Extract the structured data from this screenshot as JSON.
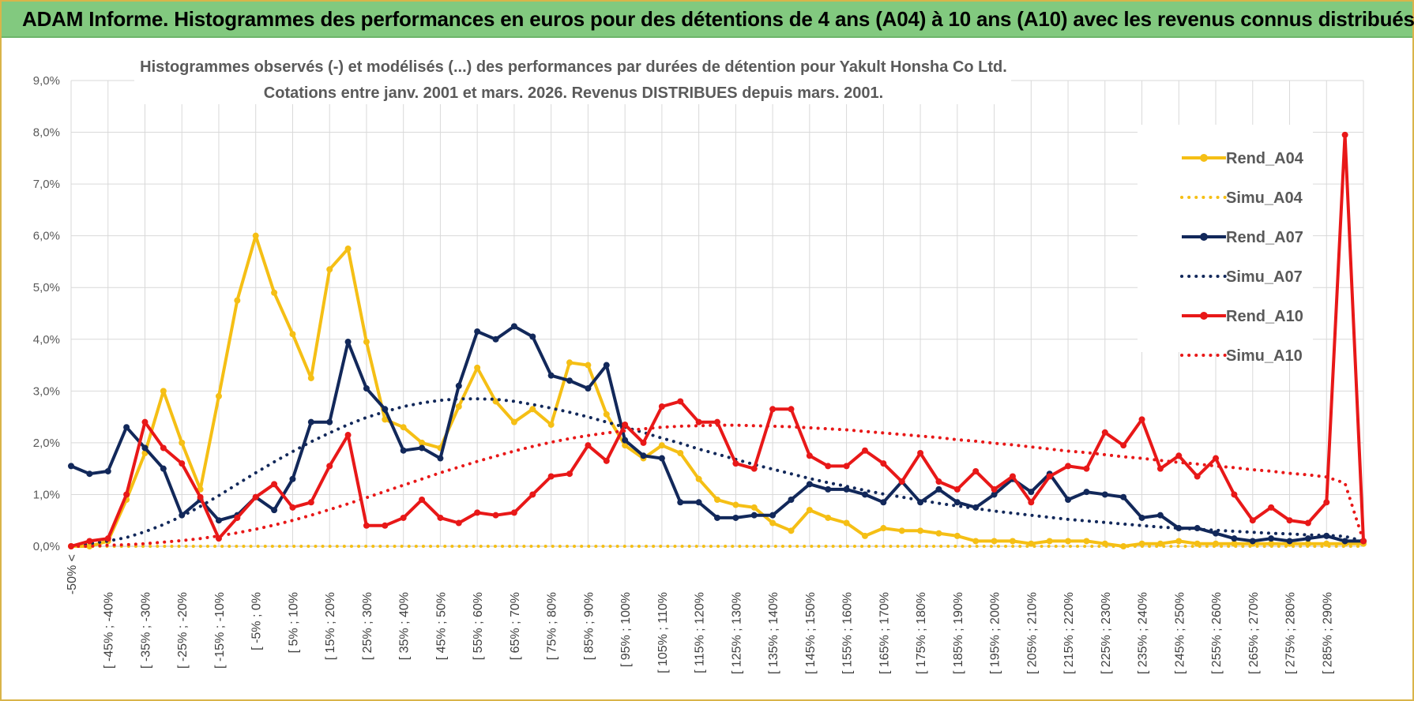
{
  "header": {
    "title": "ADAM Informe. Histogrammes des performances en euros pour des détentions de 4 ans (A04) à 10 ans (A10) avec les revenus connus distribués"
  },
  "chart_data": {
    "type": "line",
    "title_line1": "Histogrammes observés (-) et modélisés (...) des performances par durées de détention pour Yakult Honsha Co Ltd.",
    "title_line2": "Cotations entre janv. 2001 et mars. 2026.  Revenus DISTRIBUES depuis mars. 2001.",
    "ylim": [
      0,
      9
    ],
    "yticks": [
      "0,0%",
      "1,0%",
      "2,0%",
      "3,0%",
      "4,0%",
      "5,0%",
      "6,0%",
      "7,0%",
      "8,0%",
      "9,0%"
    ],
    "grid": true,
    "legend_position": "right",
    "x_labels": [
      "-50% <",
      "[ -45% ; -40%",
      "[ -35% ; -30%",
      "[ -25% ; -20%",
      "[ -15% ; -10%",
      "[ -5% ; 0%",
      "[ 5% ; 10%",
      "[ 15% ; 20%",
      "[ 25% ; 30%",
      "[ 35% ; 40%",
      "[ 45% ; 50%",
      "[ 55% ; 60%",
      "[ 65% ; 70%",
      "[ 75% ; 80%",
      "[ 85% ; 90%",
      "[ 95% ; 100%",
      "[ 105% ; 110%",
      "[ 115% ; 120%",
      "[ 125% ; 130%",
      "[ 135% ; 140%",
      "[ 145% ; 150%",
      "[ 155% ; 160%",
      "[ 165% ; 170%",
      "[ 175% ; 180%",
      "[ 185% ; 190%",
      "[ 195% ; 200%",
      "[ 205% ; 210%",
      "[ 215% ; 220%",
      "[ 225% ; 230%",
      "[ 235% ; 240%",
      "[ 245% ; 250%",
      "[ 255% ; 260%",
      "[ 265% ; 270%",
      "[ 275% ; 280%",
      "[ 285% ; 290%"
    ],
    "series": [
      {
        "name": "Rend_A04",
        "style": "solid",
        "color": "#f5bf15",
        "values": [
          0.0,
          0.0,
          0.1,
          0.9,
          1.8,
          3.0,
          2.0,
          1.1,
          2.9,
          4.75,
          6.0,
          4.9,
          4.1,
          3.25,
          5.35,
          5.75,
          3.95,
          2.45,
          2.3,
          2.0,
          1.9,
          2.7,
          3.45,
          2.8,
          2.4,
          2.65,
          2.35,
          3.55,
          3.5,
          2.55,
          1.95,
          1.7,
          1.95,
          1.8,
          1.3,
          0.9,
          0.8,
          0.75,
          0.45,
          0.3,
          0.7,
          0.55,
          0.45,
          0.2,
          0.35,
          0.3,
          0.3,
          0.25,
          0.2,
          0.1,
          0.1,
          0.1,
          0.05,
          0.1,
          0.1,
          0.1,
          0.05,
          0.0,
          0.05,
          0.05,
          0.1,
          0.05,
          0.05,
          0.05,
          0.05,
          0.05,
          0.05,
          0.05,
          0.05,
          0.05,
          0.05
        ]
      },
      {
        "name": "Simu_A04",
        "style": "dotted",
        "color": "#f5bf15",
        "values": [
          0.0,
          0.0,
          0.0,
          0.0,
          0.0,
          0.0,
          0.0,
          0.0,
          0.0,
          0.0,
          0.0,
          0.0,
          0.0,
          0.0,
          0.0,
          0.0,
          0.0,
          0.0,
          0.0,
          0.0,
          0.0,
          0.0,
          0.0,
          0.0,
          0.0,
          0.0,
          0.0,
          0.0,
          0.0,
          0.0,
          0.0,
          0.0,
          0.0,
          0.0,
          0.0,
          0.0,
          0.0,
          0.0,
          0.0,
          0.0,
          0.0,
          0.0,
          0.0,
          0.0,
          0.0,
          0.0,
          0.0,
          0.0,
          0.0,
          0.0,
          0.0,
          0.0,
          0.0,
          0.0,
          0.0,
          0.0,
          0.0,
          0.0,
          0.0,
          0.0,
          0.0,
          0.0,
          0.0,
          0.0,
          0.0,
          0.0,
          0.0,
          0.0,
          0.0,
          0.0,
          0.0
        ]
      },
      {
        "name": "Rend_A07",
        "style": "solid",
        "color": "#12285a",
        "values": [
          1.55,
          1.4,
          1.45,
          2.3,
          1.9,
          1.5,
          0.6,
          0.9,
          0.5,
          0.6,
          0.95,
          0.7,
          1.3,
          2.4,
          2.4,
          3.95,
          3.05,
          2.65,
          1.85,
          1.9,
          1.7,
          3.1,
          4.15,
          4.0,
          4.25,
          4.05,
          3.3,
          3.2,
          3.05,
          3.5,
          2.05,
          1.75,
          1.7,
          0.85,
          0.85,
          0.55,
          0.55,
          0.6,
          0.6,
          0.9,
          1.2,
          1.1,
          1.1,
          1.0,
          0.85,
          1.25,
          0.85,
          1.1,
          0.85,
          0.75,
          1.0,
          1.3,
          1.05,
          1.4,
          0.9,
          1.05,
          1.0,
          0.95,
          0.55,
          0.6,
          0.35,
          0.35,
          0.25,
          0.15,
          0.1,
          0.15,
          0.1,
          0.15,
          0.2,
          0.1,
          0.1
        ]
      },
      {
        "name": "Simu_A07",
        "style": "dotted",
        "color": "#12285a",
        "values": [
          0.0,
          0.05,
          0.1,
          0.17,
          0.28,
          0.42,
          0.58,
          0.77,
          0.98,
          1.2,
          1.42,
          1.63,
          1.83,
          2.02,
          2.19,
          2.35,
          2.49,
          2.6,
          2.7,
          2.77,
          2.82,
          2.85,
          2.85,
          2.84,
          2.8,
          2.74,
          2.67,
          2.59,
          2.5,
          2.4,
          2.3,
          2.2,
          2.09,
          1.99,
          1.88,
          1.78,
          1.68,
          1.58,
          1.49,
          1.4,
          1.31,
          1.23,
          1.16,
          1.08,
          1.01,
          0.95,
          0.89,
          0.83,
          0.78,
          0.73,
          0.68,
          0.64,
          0.6,
          0.56,
          0.52,
          0.49,
          0.46,
          0.43,
          0.4,
          0.37,
          0.35,
          0.33,
          0.31,
          0.29,
          0.27,
          0.25,
          0.24,
          0.22,
          0.21,
          0.19,
          0.1
        ]
      },
      {
        "name": "Rend_A10",
        "style": "solid",
        "color": "#e81818",
        "values": [
          0.0,
          0.1,
          0.15,
          1.0,
          2.4,
          1.9,
          1.6,
          0.95,
          0.15,
          0.55,
          0.95,
          1.2,
          0.75,
          0.85,
          1.55,
          2.15,
          0.4,
          0.4,
          0.55,
          0.9,
          0.55,
          0.45,
          0.65,
          0.6,
          0.65,
          1.0,
          1.35,
          1.4,
          1.95,
          1.65,
          2.35,
          2.0,
          2.7,
          2.8,
          2.4,
          2.4,
          1.6,
          1.5,
          2.65,
          2.65,
          1.75,
          1.55,
          1.55,
          1.85,
          1.6,
          1.25,
          1.8,
          1.25,
          1.1,
          1.45,
          1.1,
          1.35,
          0.85,
          1.35,
          1.55,
          1.5,
          2.2,
          1.95,
          2.45,
          1.5,
          1.75,
          1.35,
          1.7,
          1.0,
          0.5,
          0.75,
          0.5,
          0.45,
          0.85,
          7.95,
          0.1
        ]
      },
      {
        "name": "Simu_A10",
        "style": "dotted",
        "color": "#e81818",
        "values": [
          0.0,
          0.0,
          0.02,
          0.03,
          0.05,
          0.08,
          0.11,
          0.15,
          0.2,
          0.26,
          0.33,
          0.41,
          0.5,
          0.6,
          0.71,
          0.82,
          0.94,
          1.06,
          1.18,
          1.3,
          1.42,
          1.53,
          1.64,
          1.74,
          1.84,
          1.93,
          2.01,
          2.08,
          2.14,
          2.19,
          2.23,
          2.27,
          2.3,
          2.32,
          2.33,
          2.34,
          2.34,
          2.33,
          2.32,
          2.31,
          2.29,
          2.27,
          2.25,
          2.22,
          2.19,
          2.16,
          2.13,
          2.1,
          2.06,
          2.03,
          1.99,
          1.96,
          1.92,
          1.88,
          1.84,
          1.81,
          1.77,
          1.73,
          1.7,
          1.66,
          1.62,
          1.59,
          1.55,
          1.52,
          1.48,
          1.45,
          1.41,
          1.38,
          1.34,
          1.22,
          0.1
        ]
      }
    ]
  }
}
